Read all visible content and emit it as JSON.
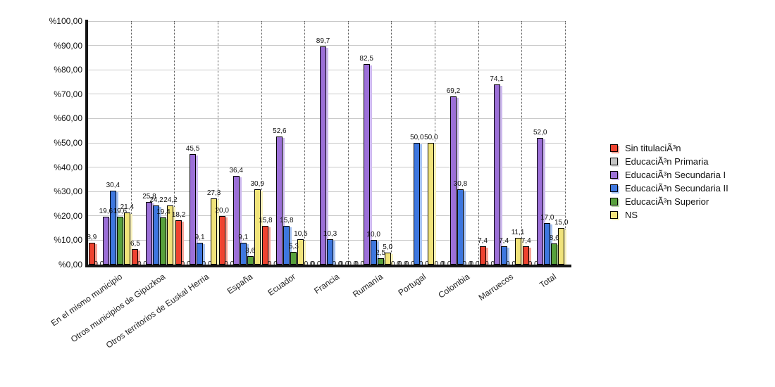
{
  "chart_data": {
    "type": "bar",
    "title": "",
    "xlabel": "",
    "ylabel": "",
    "ylim": [
      0,
      100
    ],
    "grid": {
      "horizontal": "solid-light-gray",
      "vertical": "dotted-dark-between-groups"
    },
    "legend_position": "right",
    "decimal_separator": ",",
    "y_ticks": [
      "%0,00",
      "%10,00",
      "%20,00",
      "%30,00",
      "%40,00",
      "%50,00",
      "%60,00",
      "%70,00",
      "%80,00",
      "%90,00",
      "%100,00"
    ],
    "categories": [
      "En el mismo municipio",
      "Otros municipios de Gipuzkoa",
      "Otros territorios de Euskal Herria",
      "España",
      "Ecuador",
      "Francia",
      "Rumanía",
      "Portugal",
      "Colombia",
      "Marruecos",
      "Total"
    ],
    "series": [
      {
        "name": "Sin titulaciÃ³n",
        "color": "#ee4330",
        "shadow": "#f8a497",
        "values": [
          8.9,
          6.5,
          18.2,
          20.0,
          15.8,
          0.0,
          0.0,
          0.0,
          0.0,
          7.4,
          7.4
        ]
      },
      {
        "name": "EducaciÃ³n Primaria",
        "color": "#c4c4c4",
        "shadow": "#e2e2e2",
        "values": [
          0.0,
          0.0,
          0.0,
          0.0,
          0.0,
          0.0,
          0.0,
          0.0,
          0.0,
          0.0,
          0.0
        ]
      },
      {
        "name": "EducaciÃ³n Secundaria I",
        "color": "#9c70d8",
        "shadow": "#cdb9ee",
        "values": [
          19.6,
          25.8,
          45.5,
          36.4,
          52.6,
          89.7,
          82.5,
          0.0,
          69.2,
          74.1,
          52.0
        ]
      },
      {
        "name": "EducaciÃ³n Secundaria II",
        "color": "#3e77df",
        "shadow": "#a6c2f2",
        "values": [
          30.4,
          24.2,
          9.1,
          9.1,
          15.8,
          10.3,
          10.0,
          50.0,
          30.8,
          7.4,
          17.0
        ]
      },
      {
        "name": "EducaciÃ³n Superior",
        "color": "#58a13c",
        "shadow": "#b6d6a4",
        "values": [
          19.6,
          19.4,
          0.0,
          3.6,
          5.3,
          0.0,
          2.5,
          0.0,
          0.0,
          0.0,
          8.6
        ]
      },
      {
        "name": "NS",
        "color": "#f0e37a",
        "shadow": "#f9f2bc",
        "values": [
          21.4,
          24.2,
          27.3,
          30.9,
          10.5,
          0.0,
          5.0,
          50.0,
          0.0,
          11.1,
          15.0
        ]
      }
    ]
  }
}
